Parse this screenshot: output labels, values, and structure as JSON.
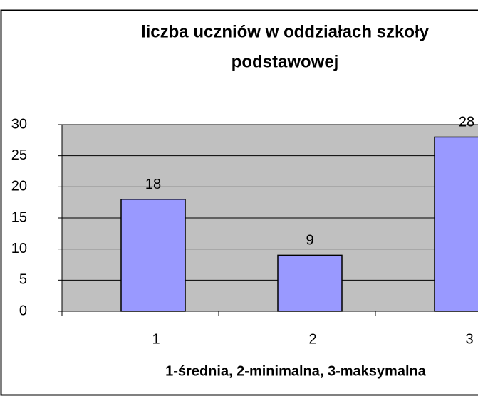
{
  "chart_data": {
    "type": "bar",
    "title": [
      "liczba uczniów w oddziałach szkoły",
      "podstawowej"
    ],
    "x_label": "1-średnia, 2-minimalna, 3-maksymalna",
    "categories": [
      "1",
      "2",
      "3"
    ],
    "values": [
      18,
      9,
      28
    ],
    "color": "#9999ff",
    "ylim": [
      0,
      30
    ],
    "yticks": [
      0,
      5,
      10,
      15,
      20,
      25,
      30
    ],
    "grid": true
  }
}
